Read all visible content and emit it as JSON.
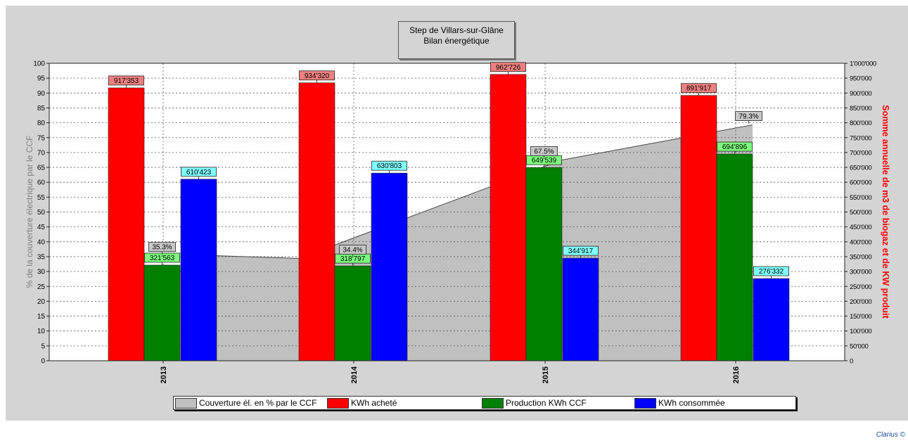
{
  "title_lines": [
    "Step de Villars-sur-Glâne",
    "Bilan énergétique"
  ],
  "credit": "Clarius ©",
  "colors": {
    "background": "#d4d4d4",
    "coverage": "#c0c0c0",
    "achete": "#ff0000",
    "production": "#008000",
    "consommee": "#0000ff",
    "label_achete": "#f08080",
    "label_production": "#7cfc7c",
    "label_consommee": "#80ffff",
    "label_coverage": "#c8c8c8",
    "right_axis_title": "#ff0000",
    "left_axis_title": "#808080"
  },
  "legend": [
    {
      "label": "Couverture él. en % par le CCF",
      "color": "#c0c0c0"
    },
    {
      "label": "KWh acheté",
      "color": "#ff0000"
    },
    {
      "label": "Production KWh CCF",
      "color": "#008000"
    },
    {
      "label": "KWh consommée",
      "color": "#0000ff"
    }
  ],
  "chart_data": {
    "type": "bar",
    "categories": [
      "2013",
      "2014",
      "2015",
      "2016"
    ],
    "series": [
      {
        "name": "KWh acheté",
        "axis": "right",
        "values": [
          917353,
          934320,
          962726,
          891917
        ],
        "labels": [
          "917'353",
          "934'320",
          "962'726",
          "891'917"
        ]
      },
      {
        "name": "Production KWh CCF",
        "axis": "right",
        "values": [
          321563,
          318797,
          649539,
          694896
        ],
        "labels": [
          "321'563",
          "318'797",
          "649'539",
          "694'896"
        ]
      },
      {
        "name": "KWh consommée",
        "axis": "right",
        "values": [
          610423,
          630803,
          344917,
          276332
        ],
        "labels": [
          "610'423",
          "630'803",
          "344'917",
          "276'332"
        ]
      },
      {
        "name": "Couverture él. en % par le CCF",
        "type": "area",
        "axis": "left",
        "values": [
          35.3,
          34.4,
          67.5,
          79.3
        ],
        "labels": [
          "35.3%",
          "34.4%",
          "67.5%",
          "79.3%"
        ]
      }
    ],
    "ylabel_left": "% de la couverture électrique par le CCF",
    "ylabel_right": "Somme annuelle de m3 de biogaz et de KW produit",
    "ylim_left": [
      0,
      100
    ],
    "ylim_right": [
      0,
      1000000
    ],
    "left_ticks": [
      "0",
      "5",
      "10",
      "15",
      "20",
      "25",
      "30",
      "35",
      "40",
      "45",
      "50",
      "55",
      "60",
      "65",
      "70",
      "75",
      "80",
      "85",
      "90",
      "95",
      "100"
    ],
    "right_ticks": [
      "0",
      "50'000",
      "100'000",
      "150'000",
      "200'000",
      "250'000",
      "300'000",
      "350'000",
      "400'000",
      "450'000",
      "500'000",
      "550'000",
      "600'000",
      "650'000",
      "700'000",
      "750'000",
      "800'000",
      "850'000",
      "900'000",
      "950'000",
      "1'000'000"
    ],
    "grid": true,
    "legend_position": "bottom"
  }
}
